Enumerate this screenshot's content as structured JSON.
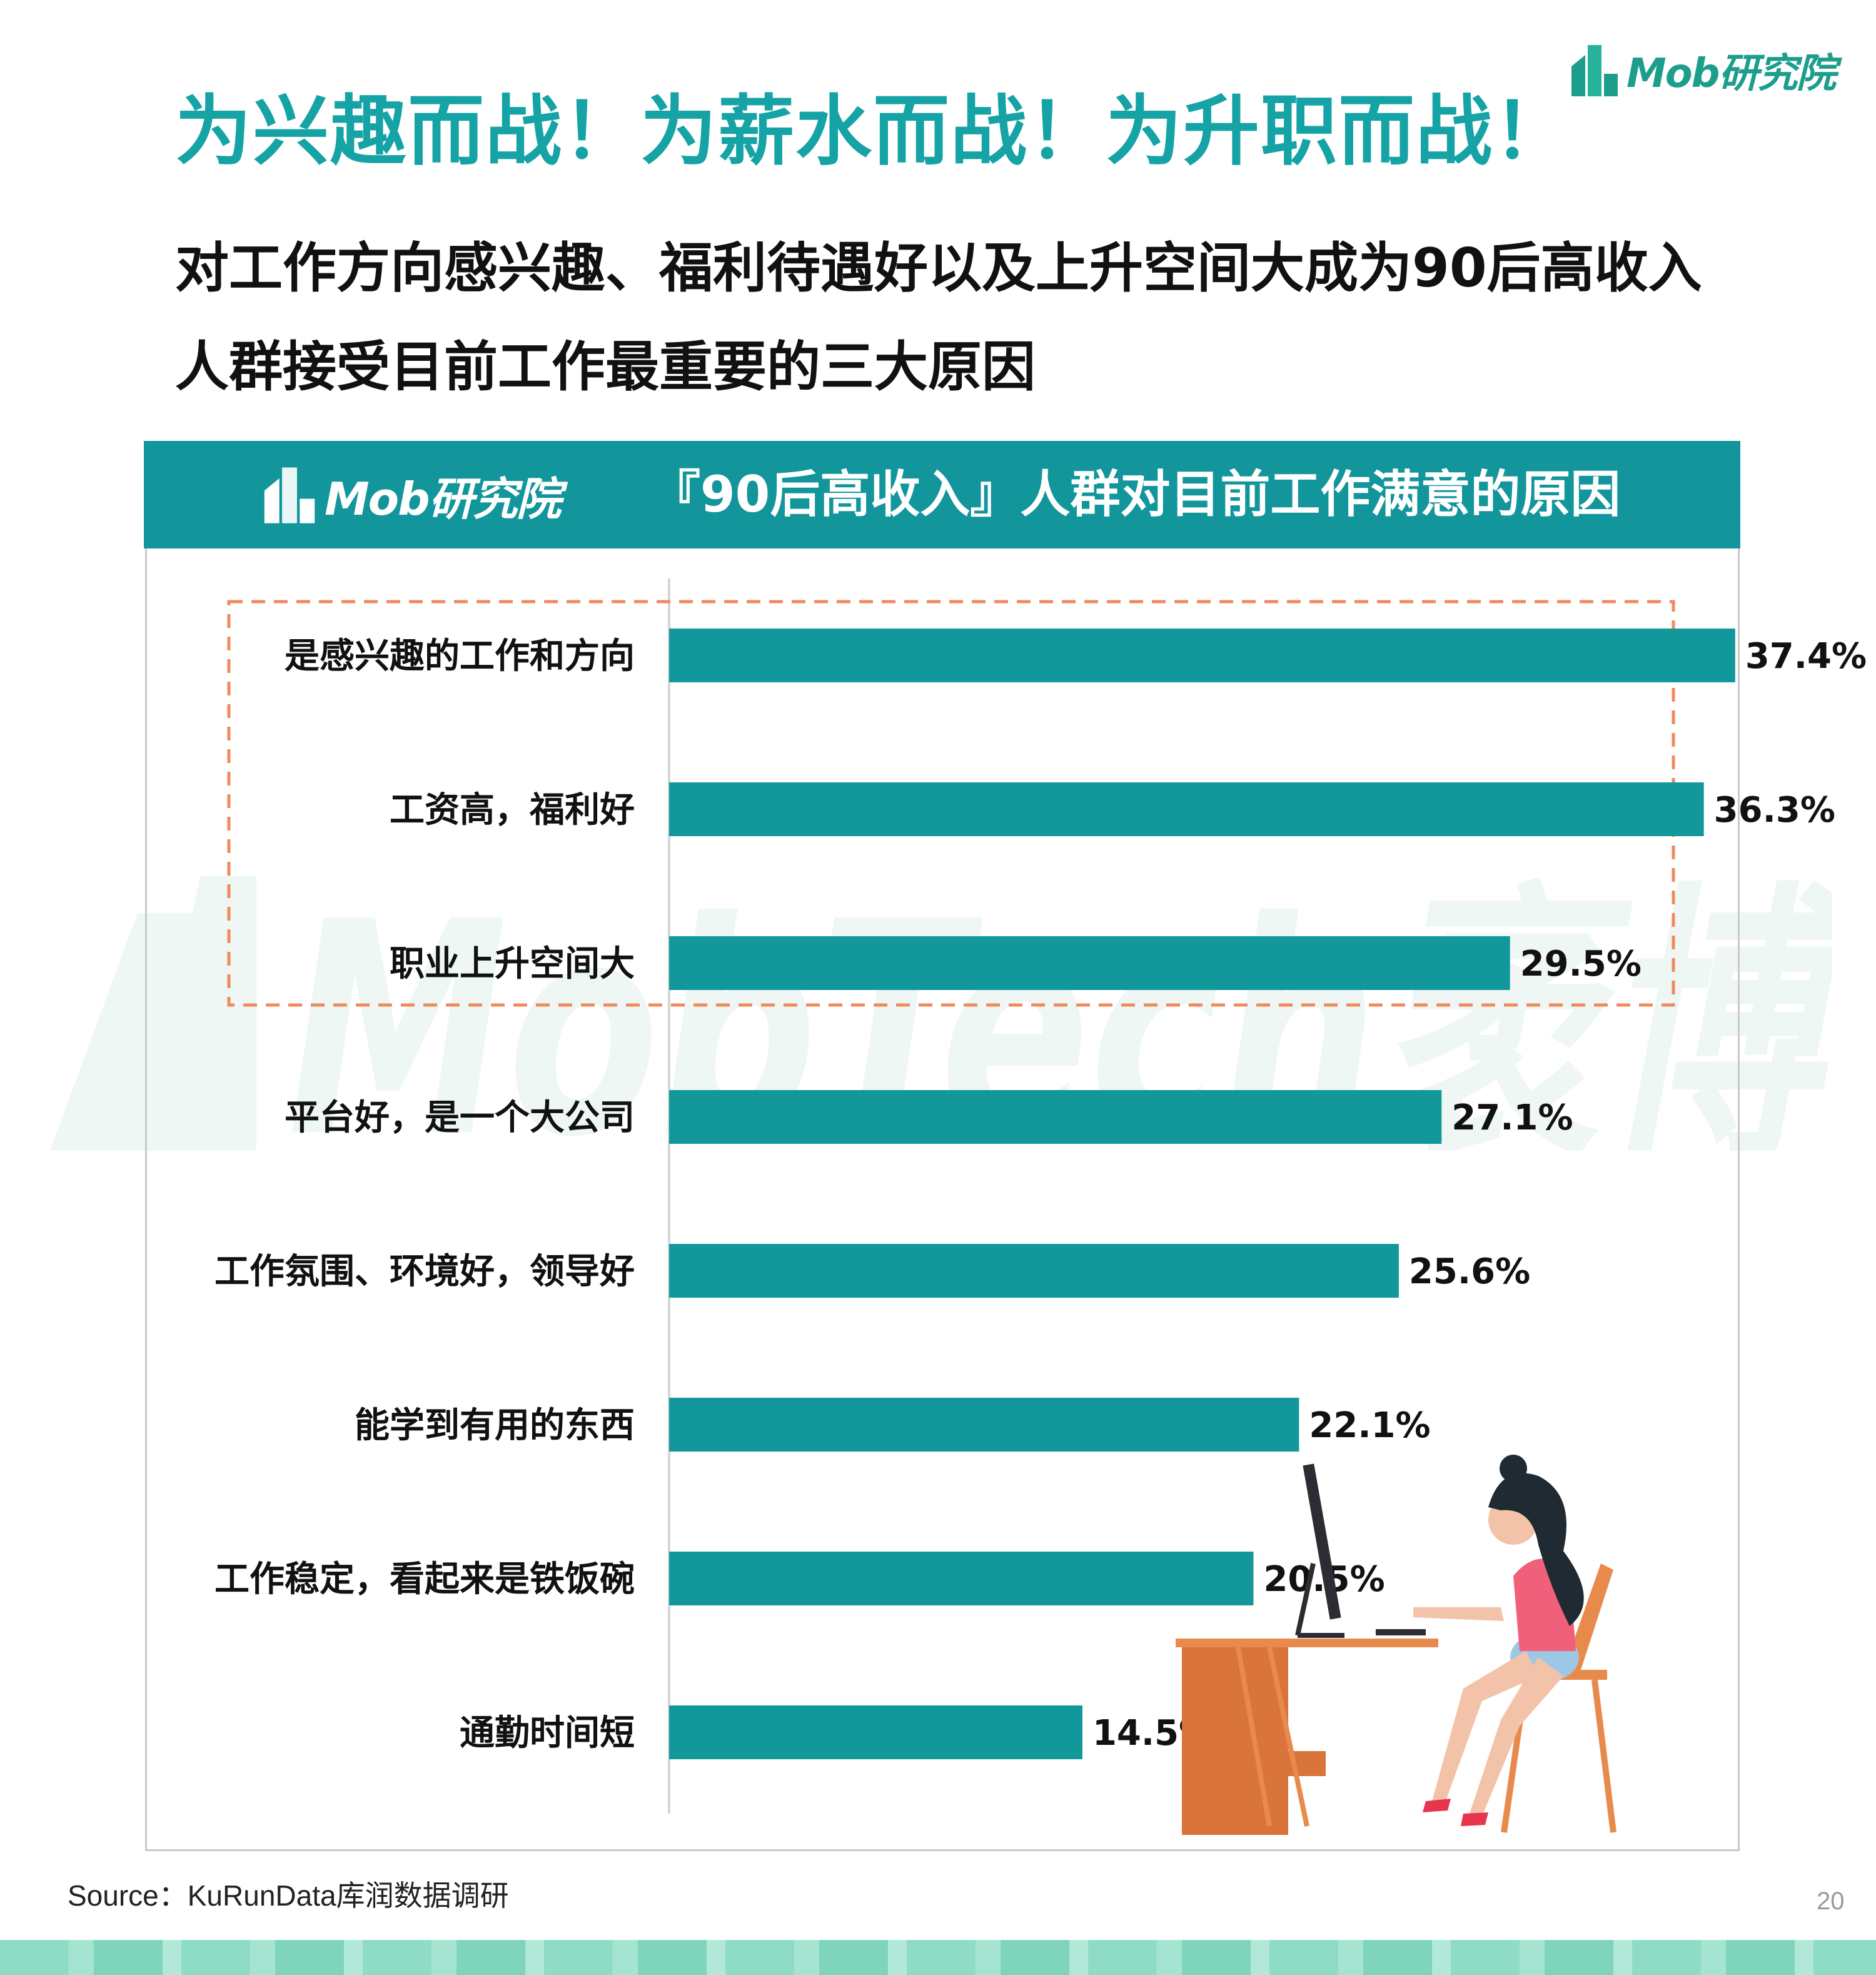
{
  "brand": {
    "logo_text": "Mob研究院"
  },
  "page": {
    "title": "为兴趣而战！为薪水而战！为升职而战！",
    "subtitle": "对工作方向感兴趣、福利待遇好以及上升空间大成为90后高收入人群接受目前工作最重要的三大原因"
  },
  "chart_header": {
    "logo_text": "Mob研究院",
    "title": "『90后高收入』人群对目前工作满意的原因"
  },
  "watermark": {
    "text": "MobTech袤博"
  },
  "chart_data": {
    "type": "bar",
    "orientation": "horizontal",
    "title": "『90后高收入』人群对目前工作满意的原因",
    "categories": [
      "是感兴趣的工作和方向",
      "工资高，福利好",
      "职业上升空间大",
      "平台好，是一个大公司",
      "工作氛围、环境好，领导好",
      "能学到有用的东西",
      "工作稳定，看起来是铁饭碗",
      "通勤时间短"
    ],
    "values": [
      37.4,
      36.3,
      29.5,
      27.1,
      25.6,
      22.1,
      20.5,
      14.5
    ],
    "value_labels": [
      "37.4%",
      "36.3%",
      "29.5%",
      "27.1%",
      "25.6%",
      "22.1%",
      "20.5%",
      "14.5%"
    ],
    "unit": "%",
    "highlight_top_n": 3,
    "bar_color": "#12979b",
    "highlight_color": "#f08a5d",
    "xlim": [
      0,
      40
    ],
    "grid": false
  },
  "footer": {
    "source": "Source：KuRunData库润数据调研",
    "page_number": "20"
  }
}
